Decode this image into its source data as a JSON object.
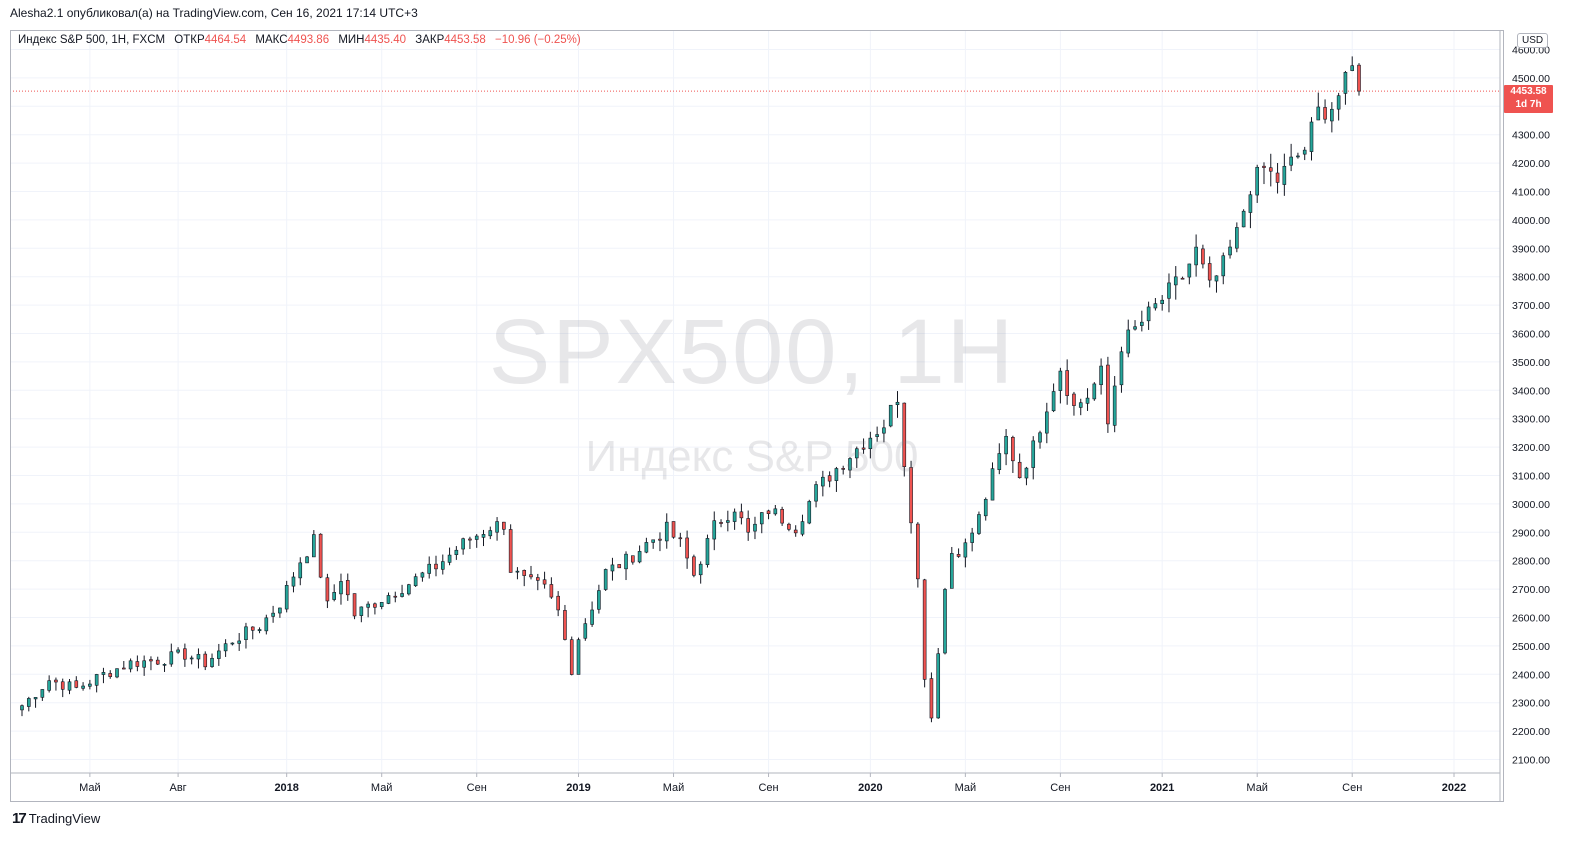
{
  "header": {
    "publish_line": "Alesha2.1 опубликовал(а) на TradingView.com, Сен 16, 2021 17:14 UTC+3"
  },
  "legend": {
    "symbol": "Индекс S&P 500, 1H, FXCM",
    "open_label": "ОТКР",
    "open": "4464.54",
    "high_label": "МАКС",
    "high": "4493.86",
    "low_label": "МИН",
    "low": "4435.40",
    "close_label": "ЗАКР",
    "close": "4453.58",
    "change": "−10.96 (−0.25%)"
  },
  "watermark": {
    "symbol": "SPX500, 1H",
    "name": "Индекс S&P 500"
  },
  "currency": "USD",
  "price_tag": {
    "price": "4453.58",
    "countdown": "1d 7h"
  },
  "footer": {
    "brand": "TradingView"
  },
  "colors": {
    "up": "#26a69a",
    "down": "#ef5350",
    "grid": "#f0f3fa",
    "axis": "#b2b5be",
    "wick": "#131722"
  },
  "chart_data": {
    "type": "candlestick",
    "ylim": [
      2100,
      4550
    ],
    "xlim": [
      0,
      220
    ],
    "y_ticks": [
      2100,
      2200,
      2300,
      2400,
      2500,
      2600,
      2700,
      2800,
      2900,
      3000,
      3100,
      3200,
      3300,
      3400,
      3500,
      3600,
      3700,
      3800,
      3900,
      4000,
      4100,
      4200,
      4300,
      4400,
      4500,
      4600
    ],
    "y_tick_labels": [
      "2100.00",
      "2200.00",
      "2300.00",
      "2400.00",
      "2500.00",
      "2600.00",
      "2700.00",
      "2800.00",
      "2900.00",
      "3000.00",
      "3100.00",
      "3200.00",
      "3300.00",
      "3400.00",
      "3500.00",
      "3600.00",
      "3700.00",
      "3800.00",
      "3900.00",
      "4000.00",
      "4100.00",
      "4200.00",
      "4300.00",
      "4400.00",
      "4500.00",
      "4600.00"
    ],
    "x_ticks": [
      {
        "x": 10,
        "label": "Май",
        "bold": false
      },
      {
        "x": 23,
        "label": "Авг",
        "bold": false
      },
      {
        "x": 39,
        "label": "2018",
        "bold": true
      },
      {
        "x": 53,
        "label": "Май",
        "bold": false
      },
      {
        "x": 67,
        "label": "Сен",
        "bold": false
      },
      {
        "x": 82,
        "label": "2019",
        "bold": true
      },
      {
        "x": 96,
        "label": "Май",
        "bold": false
      },
      {
        "x": 110,
        "label": "Сен",
        "bold": false
      },
      {
        "x": 125,
        "label": "2020",
        "bold": true
      },
      {
        "x": 139,
        "label": "Май",
        "bold": false
      },
      {
        "x": 153,
        "label": "Сен",
        "bold": false
      },
      {
        "x": 168,
        "label": "2021",
        "bold": true
      },
      {
        "x": 182,
        "label": "Май",
        "bold": false
      },
      {
        "x": 196,
        "label": "Сен",
        "bold": false
      },
      {
        "x": 211,
        "label": "2022",
        "bold": true
      }
    ],
    "last_close": 4453.58,
    "anchors": [
      [
        0,
        2290
      ],
      [
        4,
        2380
      ],
      [
        8,
        2350
      ],
      [
        12,
        2400
      ],
      [
        16,
        2440
      ],
      [
        20,
        2450
      ],
      [
        24,
        2470
      ],
      [
        27,
        2440
      ],
      [
        31,
        2520
      ],
      [
        35,
        2570
      ],
      [
        38,
        2650
      ],
      [
        41,
        2800
      ],
      [
        43,
        2870
      ],
      [
        45,
        2640
      ],
      [
        47,
        2740
      ],
      [
        49,
        2610
      ],
      [
        51,
        2640
      ],
      [
        54,
        2680
      ],
      [
        57,
        2720
      ],
      [
        61,
        2780
      ],
      [
        65,
        2860
      ],
      [
        69,
        2920
      ],
      [
        71,
        2930
      ],
      [
        72,
        2770
      ],
      [
        74,
        2730
      ],
      [
        77,
        2700
      ],
      [
        79,
        2620
      ],
      [
        81,
        2420
      ],
      [
        82,
        2530
      ],
      [
        84,
        2640
      ],
      [
        86,
        2760
      ],
      [
        89,
        2800
      ],
      [
        92,
        2860
      ],
      [
        95,
        2910
      ],
      [
        97,
        2860
      ],
      [
        99,
        2750
      ],
      [
        102,
        2920
      ],
      [
        105,
        2990
      ],
      [
        107,
        2890
      ],
      [
        110,
        2980
      ],
      [
        114,
        2920
      ],
      [
        117,
        3050
      ],
      [
        121,
        3150
      ],
      [
        125,
        3240
      ],
      [
        127,
        3280
      ],
      [
        129,
        3380
      ],
      [
        130,
        3150
      ],
      [
        131,
        2960
      ],
      [
        132,
        2730
      ],
      [
        133,
        2400
      ],
      [
        134,
        2250
      ],
      [
        135,
        2490
      ],
      [
        136,
        2700
      ],
      [
        137,
        2830
      ],
      [
        139,
        2850
      ],
      [
        141,
        2950
      ],
      [
        143,
        3100
      ],
      [
        145,
        3230
      ],
      [
        147,
        3100
      ],
      [
        149,
        3200
      ],
      [
        151,
        3350
      ],
      [
        153,
        3480
      ],
      [
        155,
        3340
      ],
      [
        157,
        3380
      ],
      [
        159,
        3460
      ],
      [
        160,
        3280
      ],
      [
        162,
        3560
      ],
      [
        165,
        3640
      ],
      [
        168,
        3720
      ],
      [
        171,
        3800
      ],
      [
        173,
        3890
      ],
      [
        175,
        3760
      ],
      [
        177,
        3840
      ],
      [
        179,
        3950
      ],
      [
        181,
        4120
      ],
      [
        183,
        4180
      ],
      [
        185,
        4140
      ],
      [
        187,
        4200
      ],
      [
        189,
        4250
      ],
      [
        191,
        4380
      ],
      [
        193,
        4400
      ],
      [
        195,
        4480
      ],
      [
        196,
        4530
      ],
      [
        197,
        4453.58
      ]
    ]
  }
}
